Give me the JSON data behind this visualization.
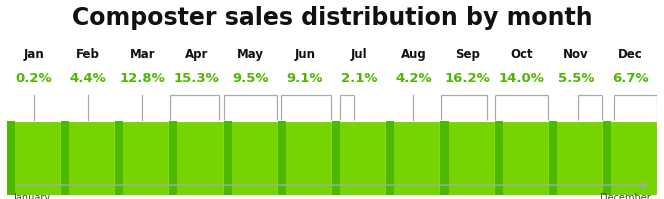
{
  "title": "Composter sales distribution by month",
  "title_fontsize": 17,
  "title_fontweight": "bold",
  "months_short": [
    "Jan",
    "Feb",
    "Mar",
    "Apr",
    "May",
    "Jun",
    "Jul",
    "Aug",
    "Sep",
    "Oct",
    "Nov",
    "Dec"
  ],
  "values": [
    0.2,
    4.4,
    12.8,
    15.3,
    9.5,
    9.1,
    2.1,
    4.2,
    16.2,
    14.0,
    5.5,
    6.7
  ],
  "bar_color_dark": "#4db800",
  "bar_color_light": "#76d400",
  "bar_border_color": "#ffffff",
  "label_month_color": "#111111",
  "label_value_color": "#4db800",
  "background_color": "#ffffff",
  "axis_label_left": "January",
  "axis_label_right": "December",
  "bracket_color": "#aaaaaa",
  "month_fontsize": 8.5,
  "value_fontsize": 9.5
}
